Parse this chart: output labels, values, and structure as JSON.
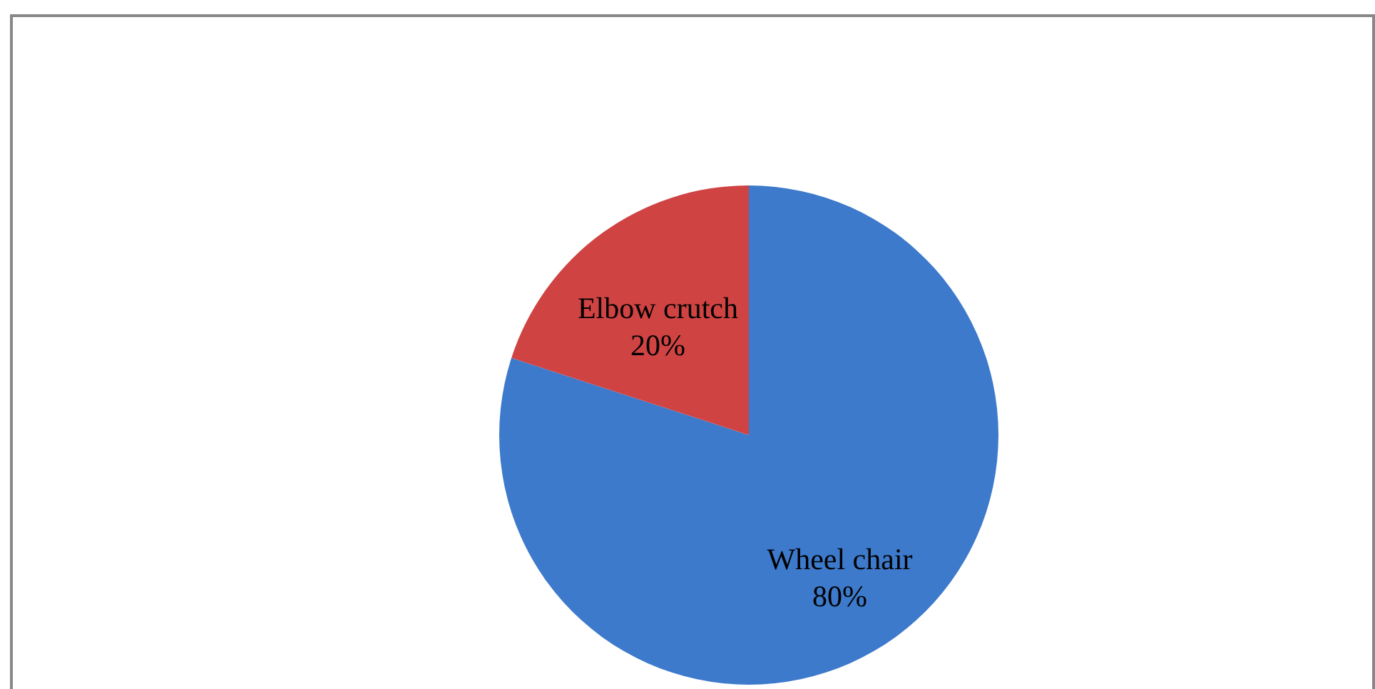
{
  "chart_data": {
    "type": "pie",
    "categories": [
      "Wheel chair",
      "Elbow crutch"
    ],
    "values": [
      80,
      20
    ],
    "colors": [
      "#3d7acb",
      "#cf4343"
    ],
    "value_labels": [
      "80%",
      "20%"
    ]
  }
}
